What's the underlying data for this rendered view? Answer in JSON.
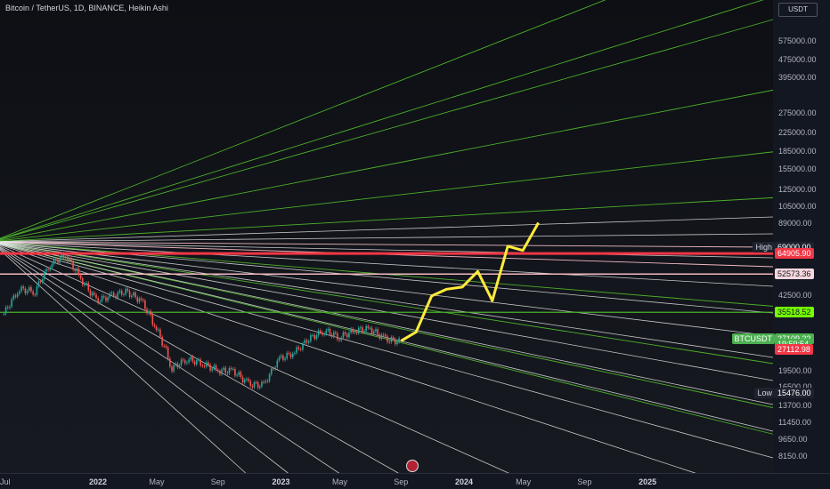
{
  "header": {
    "title": "Bitcoin / TetherUS, 1D, BINANCE, Heikin Ashi",
    "currency": "USDT"
  },
  "colors": {
    "background": "#131722",
    "fan_green": "#4caf2a",
    "fan_white": "#e6e6e6",
    "fan_pink": "#f2b8c0",
    "candle_up": "#26a69a",
    "candle_down": "#ef5350",
    "projection": "#ffeb3b",
    "high_label": "#2962ff",
    "red_label": "#f23645",
    "green_label": "#4caf50"
  },
  "chart_data": {
    "type": "line",
    "scale": "log",
    "grid": false,
    "y_ticks": [
      "575000.00",
      "475000.00",
      "395000.00",
      "275000.00",
      "225000.00",
      "185000.00",
      "155000.00",
      "125000.00",
      "105000.00",
      "89000.00",
      "65000.00",
      "42500.00",
      "35000.00",
      "19500.00",
      "16500.00",
      "13700.00",
      "11450.00",
      "9650.00",
      "8150.00"
    ],
    "x_ticks": [
      "Jul",
      "2022",
      "May",
      "Sep",
      "2023",
      "May",
      "Sep",
      "2024",
      "May",
      "Sep",
      "2025"
    ],
    "x_bold": [
      "2022",
      "2023",
      "2024",
      "2025"
    ],
    "price_labels": [
      {
        "text": "High",
        "value": "69000.00",
        "price": 69000
      },
      {
        "text": "",
        "value": "64905.90",
        "price": 64905.9
      },
      {
        "text": "",
        "value": "52573.36",
        "price": 52573.36
      },
      {
        "text": "",
        "value": "35518.52",
        "price": 35518.52
      },
      {
        "text": "BTCUSDT",
        "value": "27109.22",
        "price": 27109.22
      },
      {
        "text": "",
        "value": "19:59:54",
        "price": 25700
      },
      {
        "text": "",
        "value": "27112.98",
        "price": 24250
      },
      {
        "text": "Low",
        "value": "15476.00",
        "price": 15476
      }
    ],
    "series": [
      {
        "name": "BTCUSDT",
        "kind": "candles",
        "x": [
          "2021-07-01",
          "2021-08-01",
          "2021-09-01",
          "2021-10-01",
          "2021-11-01",
          "2021-12-01",
          "2022-01-01",
          "2022-02-01",
          "2022-03-01",
          "2022-04-01",
          "2022-05-01",
          "2022-06-01",
          "2022-07-01",
          "2022-08-01",
          "2022-09-01",
          "2022-10-01",
          "2022-11-01",
          "2022-12-01",
          "2023-01-01",
          "2023-02-01",
          "2023-03-01",
          "2023-04-01",
          "2023-05-01",
          "2023-06-01",
          "2023-07-01",
          "2023-08-01",
          "2023-09-01"
        ],
        "values": [
          35000,
          45000,
          44000,
          58000,
          64000,
          50000,
          40000,
          42000,
          44000,
          40000,
          30000,
          20000,
          22000,
          21000,
          19500,
          19500,
          17000,
          16800,
          22000,
          23500,
          27000,
          29500,
          27500,
          29500,
          30000,
          27000,
          26200
        ]
      },
      {
        "name": "Projection",
        "kind": "line",
        "x": [
          "2023-09-01",
          "2023-10-01",
          "2023-11-01",
          "2023-12-01",
          "2024-01-01",
          "2024-02-01",
          "2024-03-01",
          "2024-04-01",
          "2024-05-01",
          "2024-06-01"
        ],
        "values": [
          26500,
          29000,
          42000,
          45000,
          46000,
          54000,
          40000,
          70000,
          67000,
          89000
        ]
      }
    ]
  }
}
